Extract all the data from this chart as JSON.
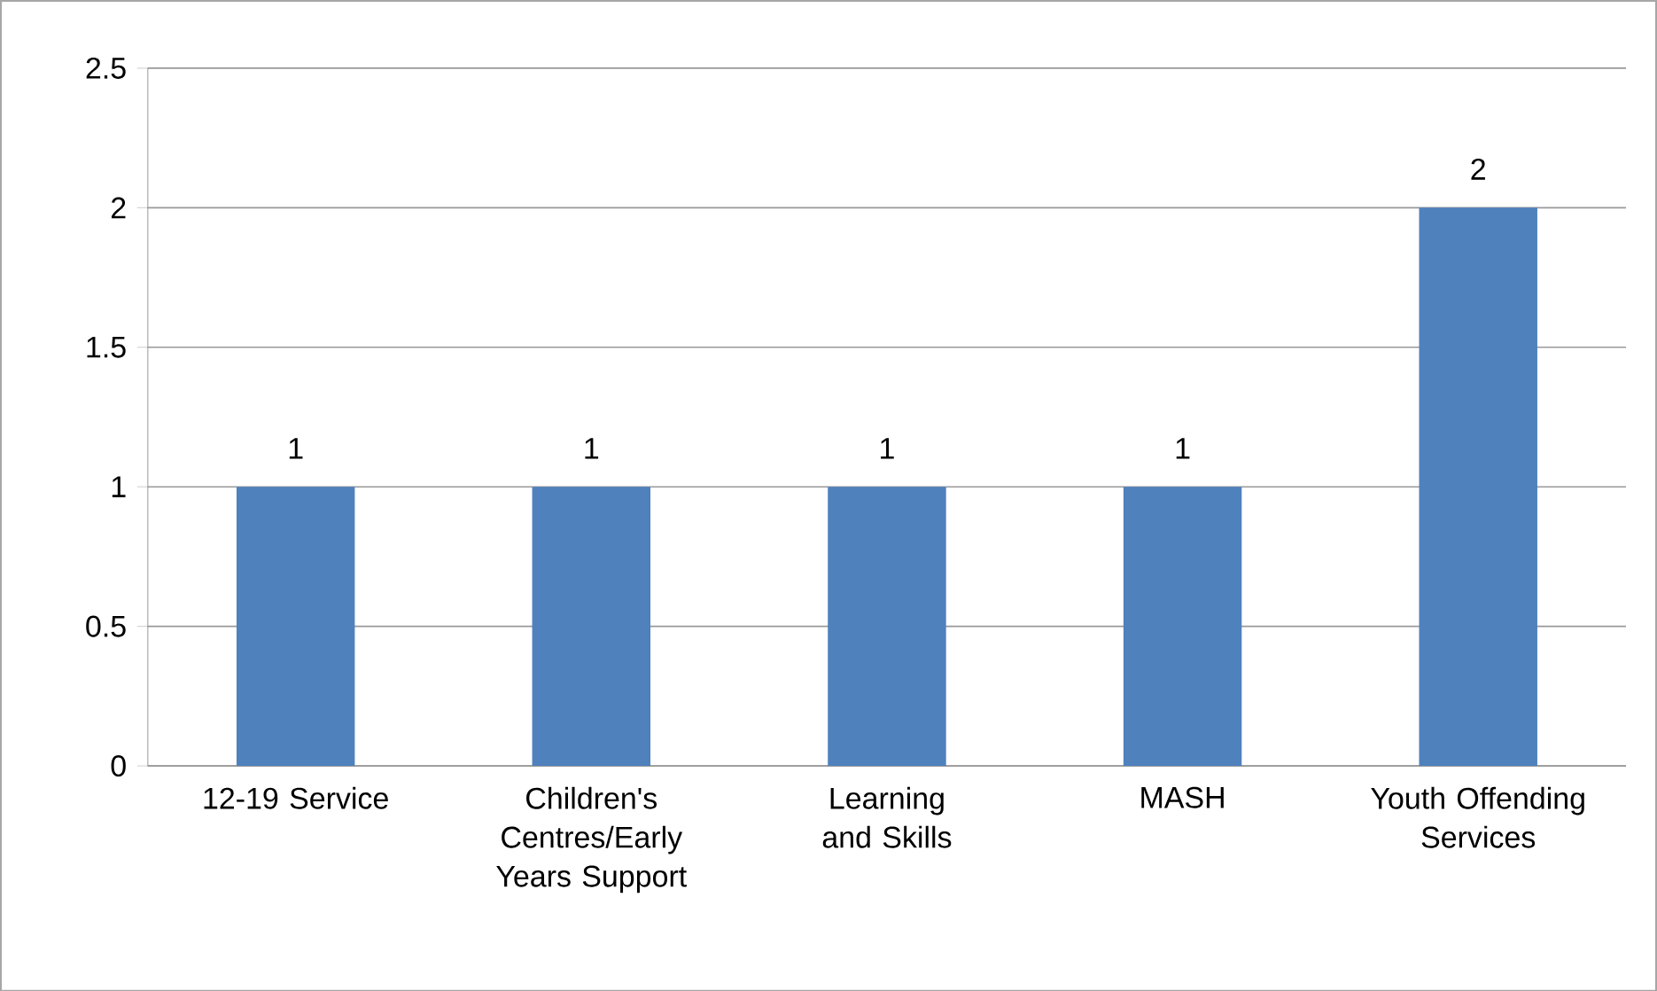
{
  "chart_data": {
    "type": "bar",
    "categories": [
      "12-19 Service",
      "Children's Centres/Early Years Support",
      "Learning and Skills",
      "MASH",
      "Youth Offending Services"
    ],
    "values": [
      1,
      1,
      1,
      1,
      2
    ],
    "color": "#4f81bd",
    "ylim": [
      0,
      2.5
    ],
    "yticks": [
      0,
      0.5,
      1,
      1.5,
      2,
      2.5
    ],
    "grid": "y",
    "data_labels": true
  }
}
